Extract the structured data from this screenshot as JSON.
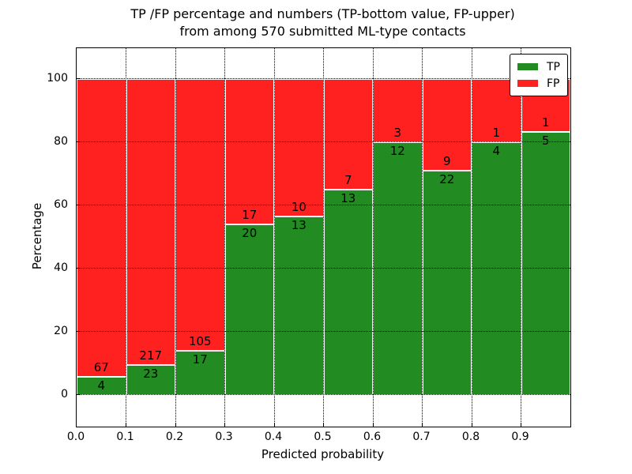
{
  "chart_data": {
    "type": "bar",
    "subtype": "stacked-percentage-histogram",
    "title_lines": [
      "TP /FP percentage and numbers (TP-bottom value, FP-upper)",
      "from among 570 submitted ML-type contacts"
    ],
    "title": "TP /FP percentage and numbers (TP-bottom value, FP-upper) from among 570 submitted ML-type contacts",
    "xlabel": "Predicted probability",
    "ylabel": "Percentage",
    "total_contacts": 570,
    "bin_edges": [
      0.0,
      0.1,
      0.2,
      0.3,
      0.4,
      0.5,
      0.6,
      0.7,
      0.8,
      0.9,
      1.0
    ],
    "x_tick_labels": [
      "0.0",
      "0.1",
      "0.2",
      "0.3",
      "0.4",
      "0.5",
      "0.6",
      "0.7",
      "0.8",
      "0.9"
    ],
    "y_tick_values": [
      0,
      20,
      40,
      60,
      80,
      100
    ],
    "xlim": [
      0.0,
      1.0
    ],
    "ylim": [
      -10,
      110
    ],
    "grid": "dotted",
    "bar_edge_color": "#ffffff",
    "series": [
      {
        "name": "TP",
        "color": "#228b22",
        "position": "bottom",
        "counts": [
          4,
          23,
          17,
          20,
          13,
          13,
          12,
          22,
          4,
          5
        ]
      },
      {
        "name": "FP",
        "color": "#ff2020",
        "position": "top",
        "counts": [
          67,
          217,
          105,
          17,
          10,
          7,
          3,
          9,
          1,
          1
        ]
      }
    ],
    "tp_percent_by_bin": [
      5.6,
      9.6,
      13.9,
      54.1,
      56.5,
      65.0,
      80.0,
      71.0,
      80.0,
      83.3
    ],
    "legend": {
      "position": "upper right",
      "entries": [
        "TP",
        "FP"
      ]
    }
  }
}
